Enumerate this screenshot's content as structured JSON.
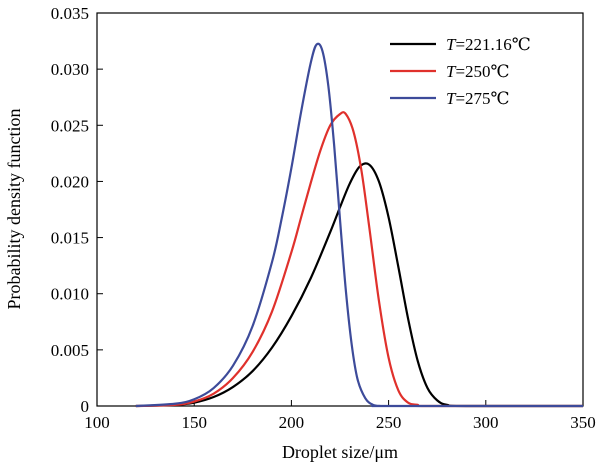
{
  "chart_data": {
    "type": "line",
    "xlabel": "Droplet size/μm",
    "ylabel": "Probability density function",
    "xlim": [
      100,
      350
    ],
    "ylim": [
      0,
      0.035
    ],
    "xticks": [
      "100",
      "150",
      "200",
      "250",
      "300",
      "350"
    ],
    "yticks": [
      "0",
      "0.005",
      "0.010",
      "0.015",
      "0.020",
      "0.025",
      "0.030",
      "0.035"
    ],
    "legend_position": "top-right",
    "series": [
      {
        "name": "T=221.16℃",
        "legend_prefix": "T",
        "legend_suffix": "=221.16℃",
        "color": "#000000",
        "x": [
          120,
          140,
          150,
          160,
          170,
          180,
          190,
          200,
          210,
          220,
          225,
          230,
          235,
          240,
          245,
          250,
          255,
          260,
          265,
          270,
          275,
          280,
          290,
          350
        ],
        "y": [
          0,
          0.0001,
          0.0003,
          0.0008,
          0.0017,
          0.0031,
          0.0052,
          0.008,
          0.0114,
          0.0155,
          0.0177,
          0.0198,
          0.0213,
          0.0215,
          0.02,
          0.0168,
          0.0124,
          0.0078,
          0.004,
          0.0016,
          0.0005,
          0.0001,
          0,
          0
        ]
      },
      {
        "name": "T=250℃",
        "legend_prefix": "T",
        "legend_suffix": "=250℃",
        "color": "#e0312c",
        "x": [
          120,
          140,
          150,
          160,
          170,
          180,
          190,
          200,
          205,
          210,
          215,
          220,
          225,
          228,
          232,
          236,
          240,
          245,
          250,
          255,
          260,
          265,
          270,
          350
        ],
        "y": [
          0,
          0.0001,
          0.0004,
          0.0011,
          0.0025,
          0.0048,
          0.0084,
          0.0137,
          0.0168,
          0.0199,
          0.0228,
          0.025,
          0.026,
          0.026,
          0.0244,
          0.021,
          0.016,
          0.0094,
          0.0043,
          0.0014,
          0.0003,
          0.0001,
          0,
          0
        ]
      },
      {
        "name": "T=275℃",
        "legend_prefix": "T",
        "legend_suffix": "=275℃",
        "color": "#3d4b9a",
        "x": [
          120,
          140,
          150,
          160,
          170,
          180,
          190,
          195,
          200,
          205,
          210,
          213,
          216,
          219,
          222,
          225,
          228,
          231,
          234,
          238,
          242,
          246,
          250,
          350
        ],
        "y": [
          0,
          0.0002,
          0.0006,
          0.0016,
          0.0036,
          0.0071,
          0.0128,
          0.0167,
          0.0212,
          0.0262,
          0.0306,
          0.0322,
          0.0316,
          0.0285,
          0.0232,
          0.0166,
          0.0103,
          0.0055,
          0.0024,
          0.0007,
          0.0001,
          0,
          0,
          0
        ]
      }
    ]
  }
}
